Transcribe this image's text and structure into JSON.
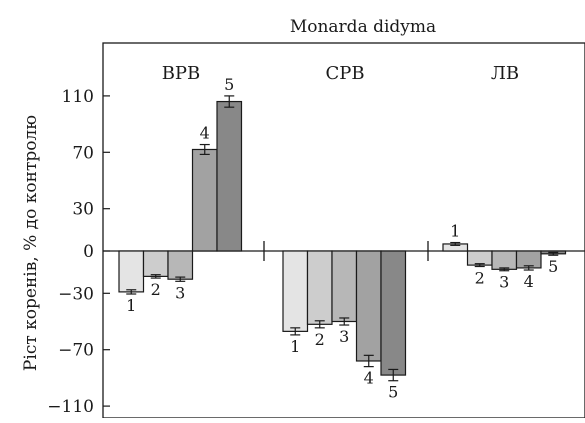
{
  "chart_data": {
    "type": "bar",
    "title": "Monarda didyma",
    "ylabel": "Ріст коренів, % до контролю",
    "xlabel": "",
    "ylim": [
      -118,
      140
    ],
    "yticks": [
      "110",
      "70",
      "30",
      "0",
      "−30",
      "−70",
      "−110"
    ],
    "ytick_values": [
      110,
      70,
      30,
      0,
      -30,
      -70,
      -110
    ],
    "grid": false,
    "legend": "none",
    "groups": [
      {
        "name": "ВРВ",
        "bars": [
          {
            "label": "1",
            "value": -29,
            "err": 1.5
          },
          {
            "label": "2",
            "value": -18,
            "err": 1.2
          },
          {
            "label": "3",
            "value": -20,
            "err": 1.5
          },
          {
            "label": "4",
            "value": 72,
            "err": 3.5
          },
          {
            "label": "5",
            "value": 106,
            "err": 4
          }
        ]
      },
      {
        "name": "СРВ",
        "bars": [
          {
            "label": "1",
            "value": -57,
            "err": 2.5
          },
          {
            "label": "2",
            "value": -52,
            "err": 2.5
          },
          {
            "label": "3",
            "value": -50,
            "err": 2.5
          },
          {
            "label": "4",
            "value": -78,
            "err": 4
          },
          {
            "label": "5",
            "value": -88,
            "err": 4
          }
        ]
      },
      {
        "name": "ЛВ",
        "bars": [
          {
            "label": "1",
            "value": 5,
            "err": 1
          },
          {
            "label": "2",
            "value": -10,
            "err": 1
          },
          {
            "label": "3",
            "value": -13,
            "err": 1
          },
          {
            "label": "4",
            "value": -12,
            "err": 1.5
          },
          {
            "label": "5",
            "value": -2,
            "err": 1
          }
        ]
      }
    ],
    "bar_colors": [
      "#e4e4e4",
      "#cdcdcd",
      "#b7b7b7",
      "#a2a2a2",
      "#888888"
    ]
  }
}
